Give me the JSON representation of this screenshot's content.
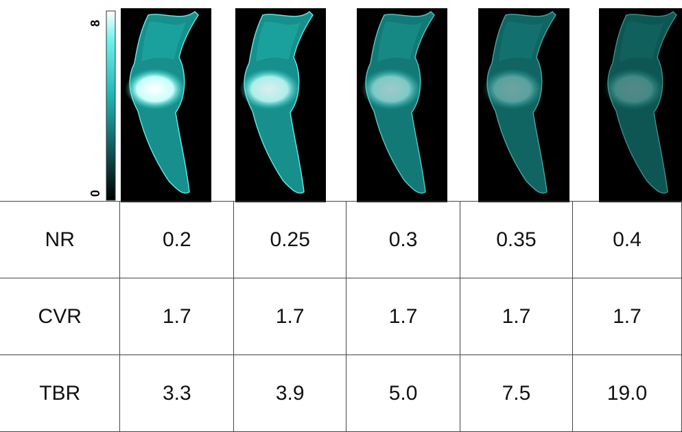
{
  "colorbar": {
    "max": "8",
    "min": "0"
  },
  "table": {
    "rows": [
      [
        "NR",
        "0.2",
        "0.25",
        "0.3",
        "0.35",
        "0.4"
      ],
      [
        "CVR",
        "1.7",
        "1.7",
        "1.7",
        "1.7",
        "1.7"
      ],
      [
        "TBR",
        "3.3",
        "3.9",
        "5.0",
        "7.5",
        "19.0"
      ]
    ]
  }
}
